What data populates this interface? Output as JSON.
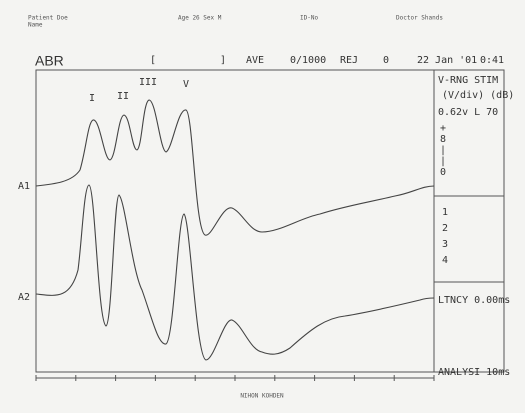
{
  "header": {
    "patient": "Patient Doe",
    "name": "Name",
    "age_sex": "Age 26  Sex M",
    "id": "ID-No",
    "doctor": "Doctor Shands"
  },
  "status": {
    "mode": "ABR",
    "bracket_open": "[",
    "bracket_close": "]",
    "ave": "AVE",
    "count": "0/1000",
    "rej": "REJ",
    "rej_count": "0",
    "date": "22 Jan '01",
    "time": "0:41"
  },
  "peaks": [
    "I",
    "II",
    "III",
    "V"
  ],
  "channels": [
    "A1",
    "A2"
  ],
  "panel": {
    "heading": "V-RNG STIM",
    "units": "(V/div) (dB)",
    "setting": "0.62v L 70",
    "markers": [
      "+",
      "8",
      "|",
      "|",
      "0"
    ],
    "list": [
      "1",
      "2",
      "3",
      "4"
    ],
    "latency": "LTNCY  0.00ms",
    "analysis": "ANALYSI  10ms"
  },
  "footer": "NIHON KOHDEN"
}
